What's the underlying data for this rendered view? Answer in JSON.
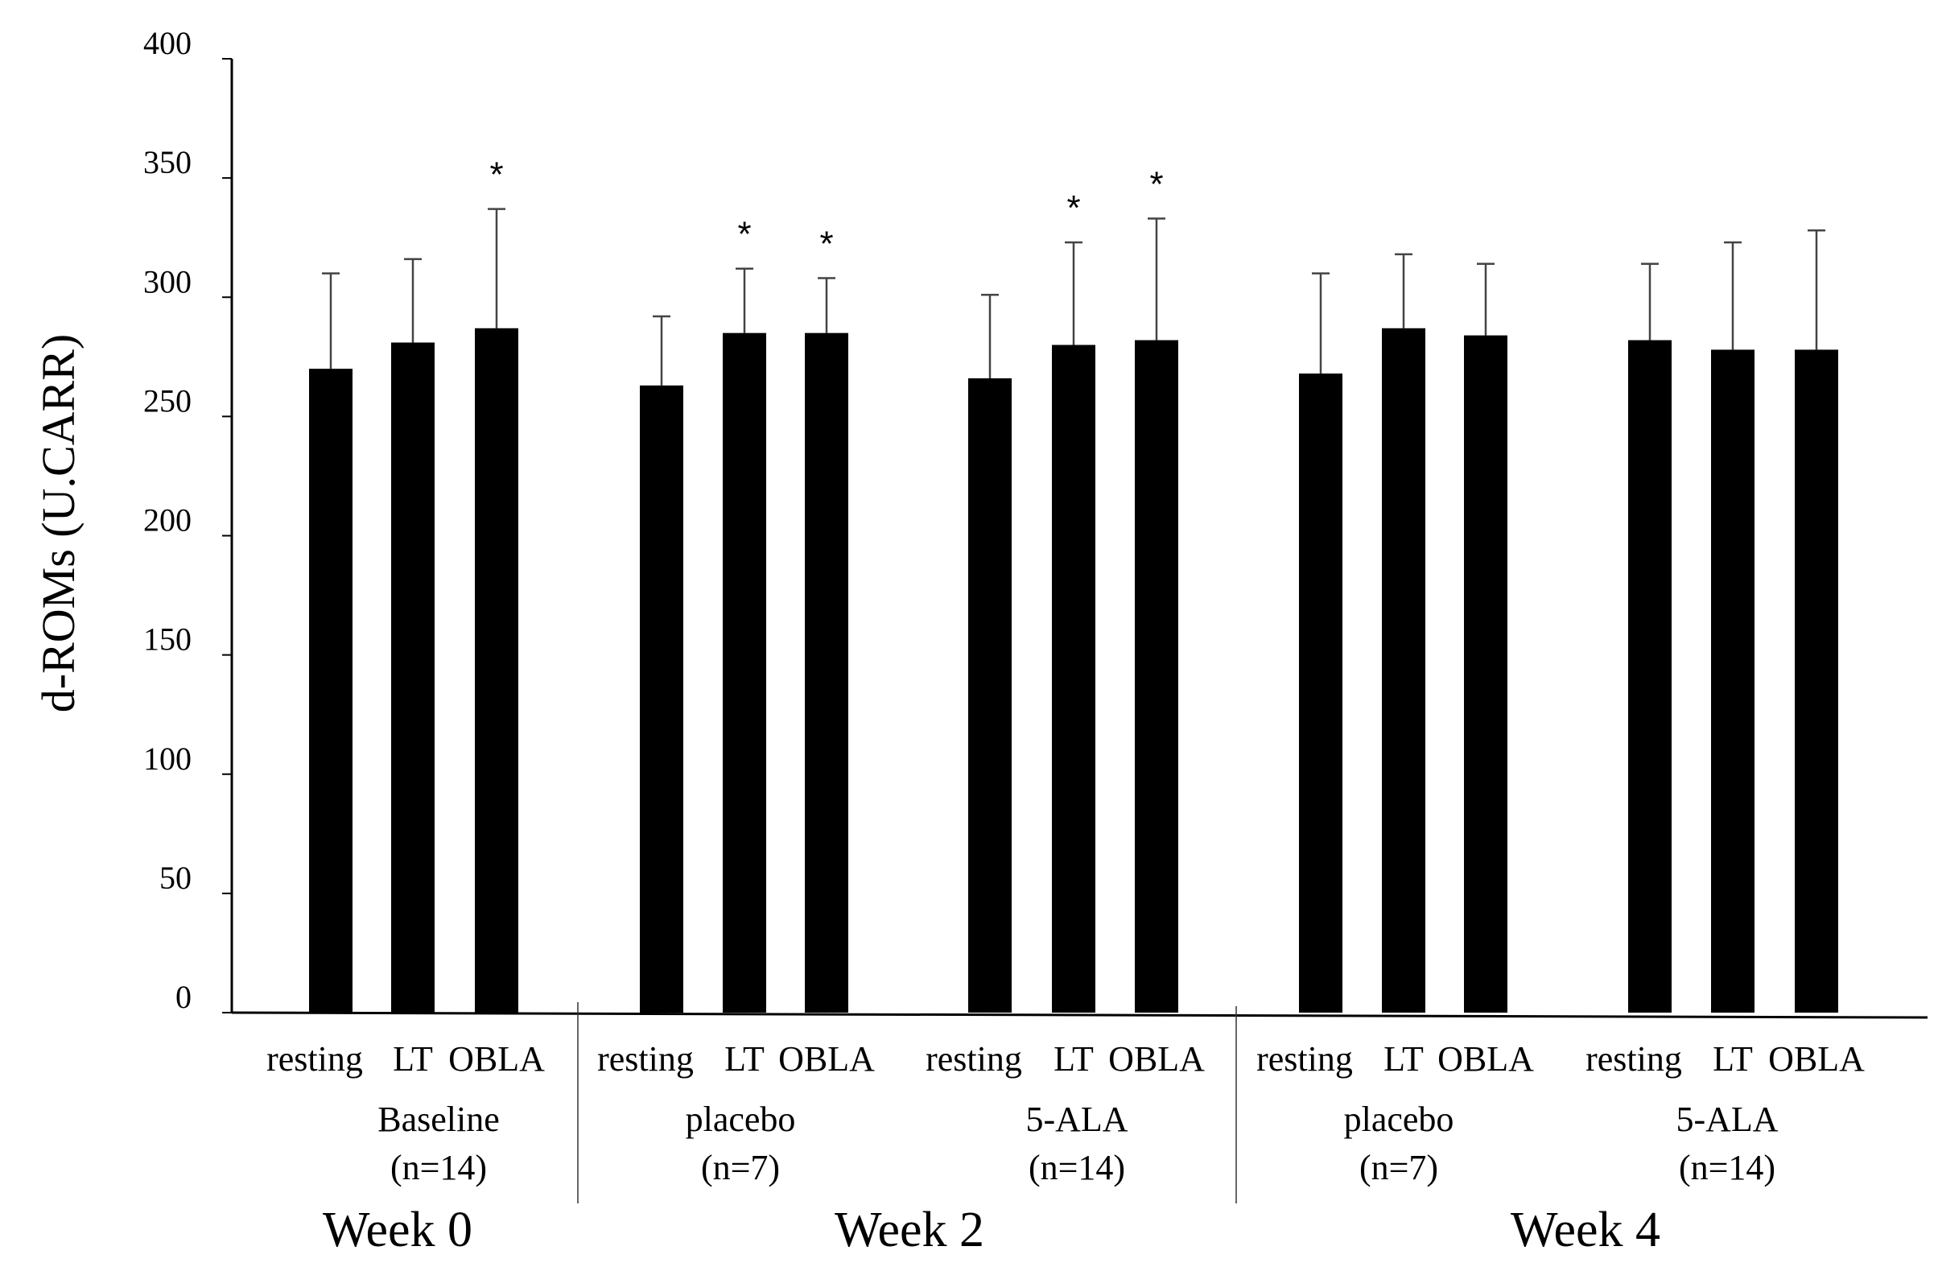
{
  "chart_data": {
    "type": "bar",
    "title": "",
    "ylabel": "d-ROMs (U.CARR)",
    "xlabel": "",
    "ylim": [
      0,
      400
    ],
    "yticks": [
      0,
      50,
      100,
      150,
      200,
      250,
      300,
      350,
      400
    ],
    "grid": false,
    "legend": "none",
    "bar_color": "#000000",
    "bars": [
      {
        "category": "resting",
        "group": "Baseline",
        "week": "Week 0",
        "value": 270,
        "error": 40,
        "significant": false
      },
      {
        "category": "LT",
        "group": "Baseline",
        "week": "Week 0",
        "value": 281,
        "error": 35,
        "significant": false
      },
      {
        "category": "OBLA",
        "group": "Baseline",
        "week": "Week 0",
        "value": 287,
        "error": 50,
        "significant": true
      },
      {
        "category": "resting",
        "group": "placebo",
        "week": "Week 2",
        "value": 263,
        "error": 29,
        "significant": false
      },
      {
        "category": "LT",
        "group": "placebo",
        "week": "Week 2",
        "value": 285,
        "error": 27,
        "significant": true
      },
      {
        "category": "OBLA",
        "group": "placebo",
        "week": "Week 2",
        "value": 285,
        "error": 23,
        "significant": true
      },
      {
        "category": "resting",
        "group": "5-ALA",
        "week": "Week 2",
        "value": 266,
        "error": 35,
        "significant": false
      },
      {
        "category": "LT",
        "group": "5-ALA",
        "week": "Week 2",
        "value": 280,
        "error": 43,
        "significant": true
      },
      {
        "category": "OBLA",
        "group": "5-ALA",
        "week": "Week 2",
        "value": 282,
        "error": 51,
        "significant": true
      },
      {
        "category": "resting",
        "group": "placebo",
        "week": "Week 4",
        "value": 268,
        "error": 42,
        "significant": false
      },
      {
        "category": "LT",
        "group": "placebo",
        "week": "Week 4",
        "value": 287,
        "error": 31,
        "significant": false
      },
      {
        "category": "OBLA",
        "group": "placebo",
        "week": "Week 4",
        "value": 284,
        "error": 30,
        "significant": false
      },
      {
        "category": "resting",
        "group": "5-ALA",
        "week": "Week 4",
        "value": 282,
        "error": 32,
        "significant": false
      },
      {
        "category": "LT",
        "group": "5-ALA",
        "week": "Week 4",
        "value": 278,
        "error": 45,
        "significant": false
      },
      {
        "category": "OBLA",
        "group": "5-ALA",
        "week": "Week 4",
        "value": 278,
        "error": 50,
        "significant": false
      }
    ],
    "groups": [
      {
        "name": "Baseline",
        "n": "(n=14)"
      },
      {
        "name": "placebo",
        "n": "(n=7)"
      },
      {
        "name": "5-ALA",
        "n": "(n=14)"
      },
      {
        "name": "placebo",
        "n": "(n=7)"
      },
      {
        "name": "5-ALA",
        "n": "(n=14)"
      }
    ],
    "weeks": [
      "Week 0",
      "Week 2",
      "Week 4"
    ],
    "significance_marker": "*"
  }
}
